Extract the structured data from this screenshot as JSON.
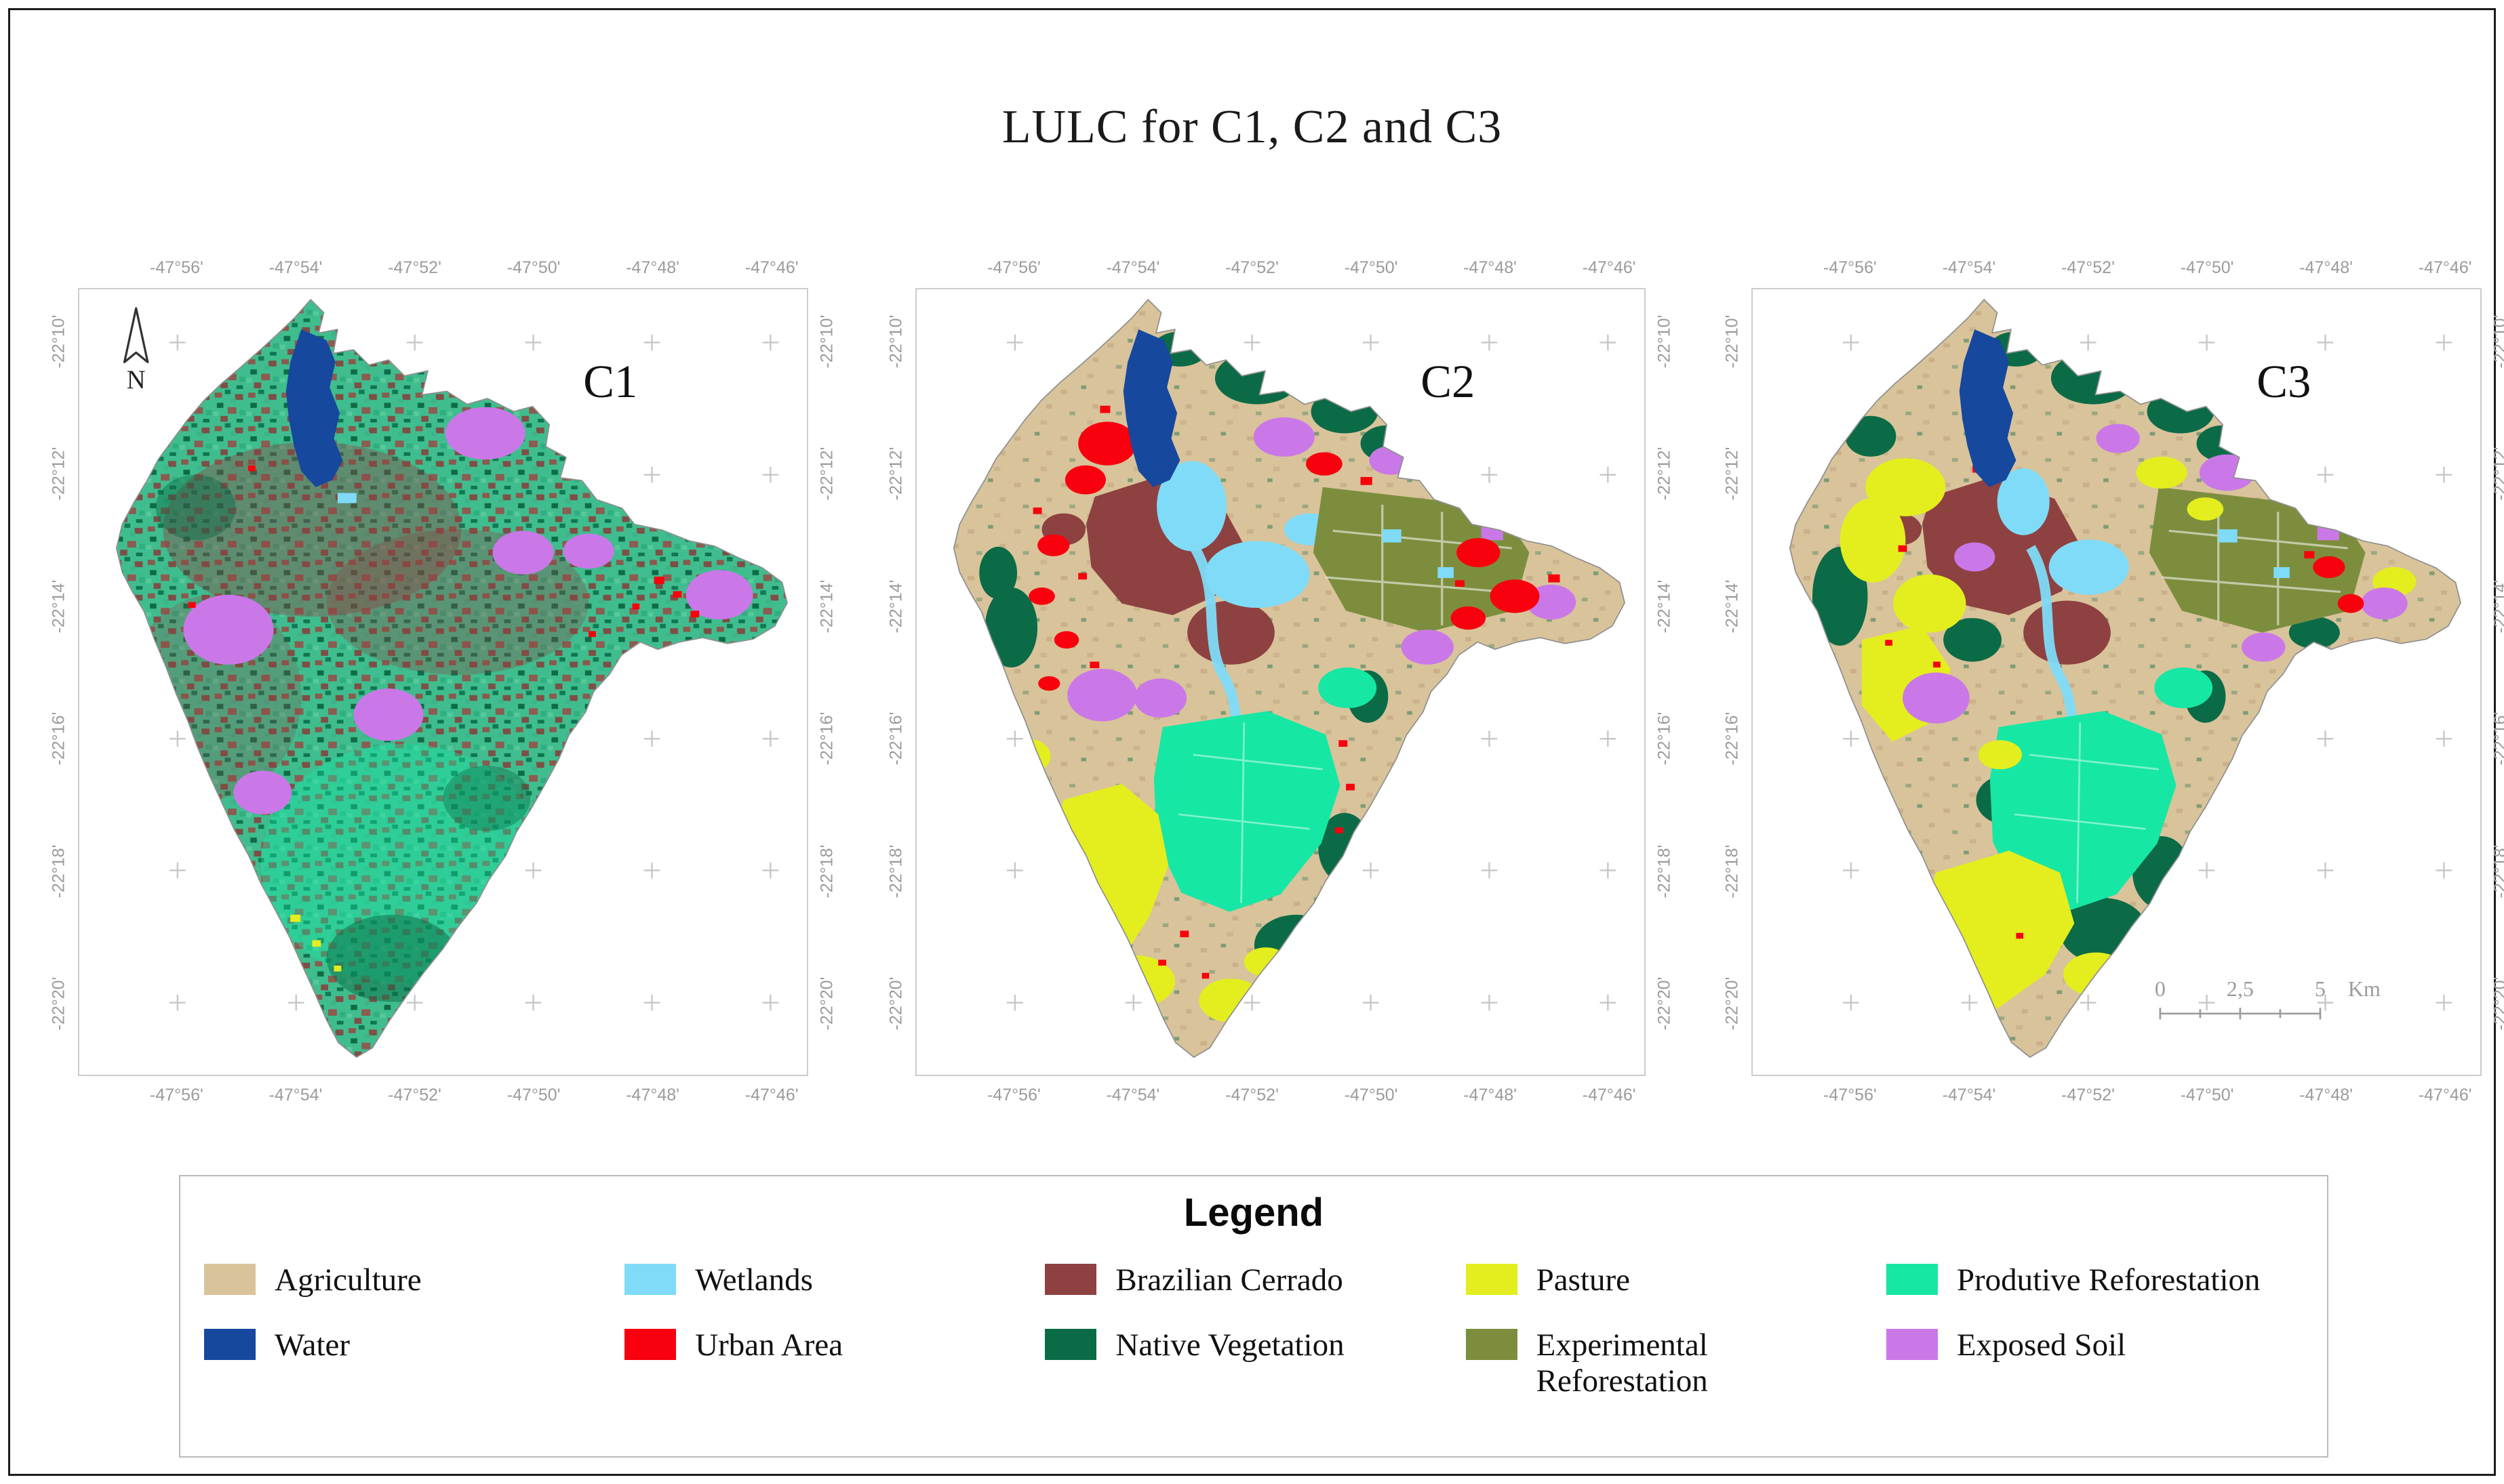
{
  "figure": {
    "title": "LULC for C1, C2 and C3",
    "north_label": "N"
  },
  "axes": {
    "lon_ticks": [
      "-47°56'",
      "-47°54'",
      "-47°52'",
      "-47°50'",
      "-47°48'",
      "-47°46'"
    ],
    "lat_ticks": [
      "-22°10'",
      "-22°12'",
      "-22°14'",
      "-22°16'",
      "-22°18'",
      "-22°20'"
    ]
  },
  "panels": [
    {
      "id": "c1",
      "label": "C1"
    },
    {
      "id": "c2",
      "label": "C2"
    },
    {
      "id": "c3",
      "label": "C3"
    }
  ],
  "scale_bar": {
    "tick_labels": [
      "0",
      "2,5",
      "5"
    ],
    "unit": "Km"
  },
  "legend": {
    "title": "Legend",
    "items": [
      {
        "id": "agriculture",
        "label": "Agriculture",
        "color": "#d9c39b"
      },
      {
        "id": "water",
        "label": "Water",
        "color": "#16489e"
      },
      {
        "id": "wetlands",
        "label": "Wetlands",
        "color": "#7fdbf7"
      },
      {
        "id": "urban",
        "label": "Urban Area",
        "color": "#f8000d"
      },
      {
        "id": "cerrado",
        "label": "Brazilian Cerrado",
        "color": "#8e4141"
      },
      {
        "id": "native",
        "label": "Native Vegetation",
        "color": "#0b6b46"
      },
      {
        "id": "pasture",
        "label": "Pasture",
        "color": "#e4ee1e"
      },
      {
        "id": "expref",
        "label": "Experimental Reforestation",
        "color": "#7c8e3d"
      },
      {
        "id": "prodref",
        "label": "Produtive Reforestation",
        "color": "#17e7a4"
      },
      {
        "id": "exposed",
        "label": "Exposed Soil",
        "color": "#ca78e8"
      }
    ]
  }
}
